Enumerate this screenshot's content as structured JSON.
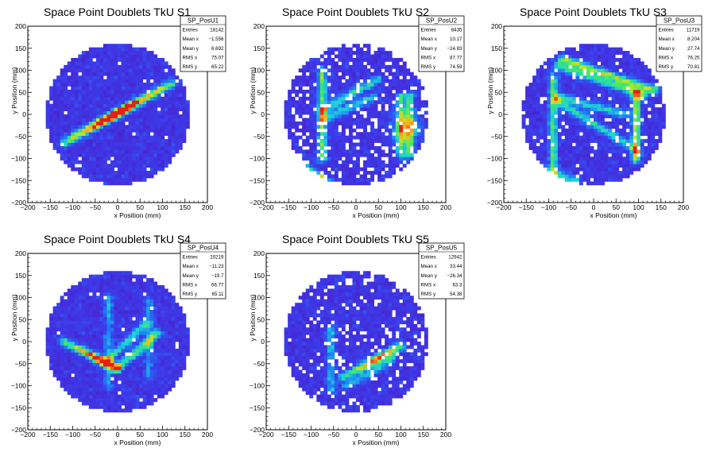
{
  "chart_data": [
    {
      "type": "heatmap",
      "title": "Space Point Doublets TkU S1",
      "xlabel": "x Position (mm)",
      "ylabel": "y Position (mm)",
      "xlim": [
        -200,
        200
      ],
      "ylim": [
        -200,
        200
      ],
      "xticks": [
        -200,
        -150,
        -100,
        -50,
        0,
        50,
        100,
        150,
        200
      ],
      "yticks": [
        -200,
        -150,
        -100,
        -50,
        0,
        50,
        100,
        150,
        200
      ],
      "stats": {
        "name": "SP_PosU1",
        "rows": [
          {
            "label": "Entries",
            "value": "18142"
          },
          {
            "label": "Mean x",
            "value": "−1.556"
          },
          {
            "label": "Mean y",
            "value": "6.692"
          },
          {
            "label": "RMS x",
            "value": "75.07"
          },
          {
            "label": "RMS y",
            "value": "65.22"
          }
        ]
      },
      "features": [
        {
          "kind": "line",
          "from": [
            -120,
            -65
          ],
          "to": [
            120,
            70
          ],
          "peak_at": [
            -10,
            5
          ],
          "intensity": 0.95
        },
        {
          "kind": "line",
          "from": [
            -100,
            -50
          ],
          "to": [
            100,
            60
          ],
          "peak_at": [
            0,
            5
          ],
          "intensity": 0.45
        }
      ]
    },
    {
      "type": "heatmap",
      "title": "Space Point Doublets TkU S2",
      "xlabel": "x Position (mm)",
      "ylabel": "y Position (mm)",
      "xlim": [
        -200,
        200
      ],
      "ylim": [
        -200,
        200
      ],
      "xticks": [
        -200,
        -150,
        -100,
        -50,
        0,
        50,
        100,
        150,
        200
      ],
      "yticks": [
        -200,
        -150,
        -100,
        -50,
        0,
        50,
        100,
        150,
        200
      ],
      "stats": {
        "name": "SP_PosU2",
        "rows": [
          {
            "label": "Entries",
            "value": "8435"
          },
          {
            "label": "Mean x",
            "value": "10.17"
          },
          {
            "label": "Mean y",
            "value": "−24.83"
          },
          {
            "label": "RMS x",
            "value": "87.77"
          },
          {
            "label": "RMS y",
            "value": "74.59"
          }
        ]
      },
      "features": [
        {
          "kind": "line",
          "from": [
            -140,
            -115
          ],
          "to": [
            -60,
            -160
          ],
          "intensity": 0.55
        },
        {
          "kind": "line",
          "from": [
            -150,
            -100
          ],
          "to": [
            -70,
            -150
          ],
          "intensity": 0.45
        },
        {
          "kind": "line",
          "from": [
            -75,
            10
          ],
          "to": [
            50,
            80
          ],
          "intensity": 0.4
        },
        {
          "kind": "line",
          "from": [
            -75,
            -10
          ],
          "to": [
            40,
            40
          ],
          "intensity": 0.35
        },
        {
          "kind": "line",
          "from": [
            -75,
            100
          ],
          "to": [
            -75,
            -100
          ],
          "intensity": 0.5
        },
        {
          "kind": "line",
          "from": [
            100,
            40
          ],
          "to": [
            100,
            -90
          ],
          "intensity": 0.45
        },
        {
          "kind": "line",
          "from": [
            120,
            40
          ],
          "to": [
            120,
            -90
          ],
          "intensity": 0.45
        },
        {
          "kind": "blob",
          "at": [
            110,
            -30
          ],
          "radius": 30,
          "intensity": 0.4
        }
      ]
    },
    {
      "type": "heatmap",
      "title": "Space Point Doublets TkU S3",
      "xlabel": "x Position (mm)",
      "ylabel": "y Position (mm)",
      "xlim": [
        -200,
        200
      ],
      "ylim": [
        -200,
        200
      ],
      "xticks": [
        -200,
        -150,
        -100,
        -50,
        0,
        50,
        100,
        150,
        200
      ],
      "yticks": [
        -200,
        -150,
        -100,
        -50,
        0,
        50,
        100,
        150,
        200
      ],
      "stats": {
        "name": "SP_PosU3",
        "rows": [
          {
            "label": "Entries",
            "value": "11719"
          },
          {
            "label": "Mean x",
            "value": "8.204"
          },
          {
            "label": "Mean y",
            "value": "27.74"
          },
          {
            "label": "RMS x",
            "value": "76.25"
          },
          {
            "label": "RMS y",
            "value": "70.81"
          }
        ]
      },
      "features": [
        {
          "kind": "line",
          "from": [
            -70,
            125
          ],
          "to": [
            135,
            55
          ],
          "intensity": 0.55
        },
        {
          "kind": "line",
          "from": [
            -80,
            110
          ],
          "to": [
            110,
            45
          ],
          "intensity": 0.45
        },
        {
          "kind": "line",
          "from": [
            -80,
            30
          ],
          "to": [
            95,
            -80
          ],
          "intensity": 0.4
        },
        {
          "kind": "line",
          "from": [
            -80,
            40
          ],
          "to": [
            70,
            0
          ],
          "intensity": 0.35
        },
        {
          "kind": "line",
          "from": [
            95,
            50
          ],
          "to": [
            95,
            -100
          ],
          "intensity": 0.6
        },
        {
          "kind": "line",
          "from": [
            -90,
            85
          ],
          "to": [
            -90,
            -140
          ],
          "intensity": 0.45
        },
        {
          "kind": "line",
          "from": [
            -130,
            -120
          ],
          "to": [
            -40,
            -150
          ],
          "intensity": 0.35
        }
      ]
    },
    {
      "type": "heatmap",
      "title": "Space Point Doublets TkU S4",
      "xlabel": "x Position (mm)",
      "ylabel": "y Position (mm)",
      "xlim": [
        -200,
        200
      ],
      "ylim": [
        -200,
        200
      ],
      "xticks": [
        -200,
        -150,
        -100,
        -50,
        0,
        50,
        100,
        150,
        200
      ],
      "yticks": [
        -200,
        -150,
        -100,
        -50,
        0,
        50,
        100,
        150,
        200
      ],
      "stats": {
        "name": "SP_PosU4",
        "rows": [
          {
            "label": "Entries",
            "value": "20219"
          },
          {
            "label": "Mean x",
            "value": "−11.23"
          },
          {
            "label": "Mean y",
            "value": "−19.7"
          },
          {
            "label": "RMS x",
            "value": "66.77"
          },
          {
            "label": "RMS y",
            "value": "65.11"
          }
        ]
      },
      "features": [
        {
          "kind": "line",
          "from": [
            -120,
            0
          ],
          "to": [
            0,
            -60
          ],
          "peak_at": [
            -40,
            -40
          ],
          "intensity": 0.95
        },
        {
          "kind": "line",
          "from": [
            0,
            -60
          ],
          "to": [
            90,
            20
          ],
          "intensity": 0.45
        },
        {
          "kind": "line",
          "from": [
            -30,
            -50
          ],
          "to": [
            60,
            40
          ],
          "intensity": 0.35
        },
        {
          "kind": "line",
          "from": [
            -20,
            100
          ],
          "to": [
            -20,
            -100
          ],
          "intensity": 0.25
        },
        {
          "kind": "line",
          "from": [
            70,
            90
          ],
          "to": [
            70,
            -80
          ],
          "intensity": 0.25
        }
      ]
    },
    {
      "type": "heatmap",
      "title": "Space Point Doublets TkU S5",
      "xlabel": "x Position (mm)",
      "ylabel": "y Position (mm)",
      "xlim": [
        -200,
        200
      ],
      "ylim": [
        -200,
        200
      ],
      "xticks": [
        -200,
        -150,
        -100,
        -50,
        0,
        50,
        100,
        150,
        200
      ],
      "yticks": [
        -200,
        -150,
        -100,
        -50,
        0,
        50,
        100,
        150,
        200
      ],
      "stats": {
        "name": "SP_PosU5",
        "rows": [
          {
            "label": "Entries",
            "value": "12942"
          },
          {
            "label": "Mean x",
            "value": "33.44"
          },
          {
            "label": "Mean y",
            "value": "−26.34"
          },
          {
            "label": "RMS x",
            "value": "63.3"
          },
          {
            "label": "RMS y",
            "value": "54.38"
          }
        ]
      },
      "features": [
        {
          "kind": "line",
          "from": [
            -30,
            -80
          ],
          "to": [
            100,
            -10
          ],
          "peak_at": [
            50,
            -40
          ],
          "intensity": 0.85
        },
        {
          "kind": "line",
          "from": [
            -55,
            30
          ],
          "to": [
            -55,
            -110
          ],
          "intensity": 0.3
        },
        {
          "kind": "line",
          "from": [
            -20,
            -100
          ],
          "to": [
            80,
            -40
          ],
          "intensity": 0.3
        }
      ]
    }
  ]
}
